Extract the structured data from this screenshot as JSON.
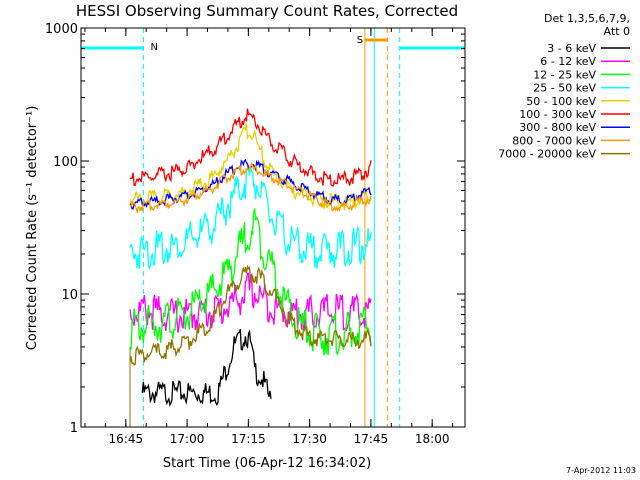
{
  "chart_data": {
    "type": "line",
    "title": "HESSI Observing Summary Count Rates, Corrected",
    "xlabel": "Start Time (06-Apr-12 16:34:02)",
    "ylabel": "Corrected Count Rate (s⁻¹ detector⁻¹)",
    "yscale": "log",
    "ylim": [
      1,
      1000
    ],
    "xlim_minutes": [
      0,
      94
    ],
    "x_tick_labels": [
      "16:45",
      "17:00",
      "17:15",
      "17:30",
      "17:45",
      "18:00"
    ],
    "y_tick_labels": [
      "1",
      "10",
      "100",
      "1000"
    ],
    "legend_header": [
      "Det 1,3,5,6,7,9,",
      "Att 0"
    ],
    "legend_placement": "right",
    "timestamp": "7-Apr-2012 11:03",
    "annotations": [
      {
        "text": "N",
        "color": "#00ffff"
      },
      {
        "text": "S",
        "color": "#ff9900"
      }
    ],
    "series": [
      {
        "name": "3 - 6 keV",
        "color": "#000000",
        "x": [
          15.0,
          22.0,
          27.0,
          33.5,
          35.5,
          37.5,
          40.5,
          41.5,
          42.5,
          44.5,
          46.5
        ],
        "y": [
          2.0,
          2.0,
          2.0,
          2.0,
          3.0,
          4.5,
          5.5,
          4.6,
          3.0,
          2.5,
          1.7
        ]
      },
      {
        "name": "6 - 12 keV",
        "color": "#ff00ff",
        "x": [
          12.0,
          16.0,
          20.0,
          25.0,
          30.0,
          34.0,
          37.0,
          39.0,
          41.0,
          42.5,
          45.0,
          48.0,
          52.0,
          55.0,
          58.0,
          62.0,
          65.0,
          68.0,
          71.0
        ],
        "y": [
          8.5,
          8.8,
          8.3,
          8.0,
          8.5,
          9.0,
          10.0,
          11.0,
          12.5,
          12.0,
          10.5,
          9.0,
          8.5,
          8.3,
          8.5,
          8.8,
          8.5,
          8.3,
          8.5
        ]
      },
      {
        "name": "12 - 25 keV",
        "color": "#00ff00",
        "x": [
          12.0,
          16.0,
          20.0,
          25.0,
          29.0,
          33.0,
          36.0,
          39.0,
          41.0,
          42.5,
          44.5,
          47.0,
          50.0,
          53.0,
          57.0,
          61.0,
          65.0,
          68.0,
          71.0
        ],
        "y": [
          6.5,
          7.0,
          7.5,
          8.0,
          10.0,
          13.0,
          18.0,
          26.0,
          36.0,
          40.0,
          28.0,
          18.0,
          10.0,
          7.0,
          6.0,
          6.0,
          6.0,
          6.5,
          7.0
        ]
      },
      {
        "name": "25 - 50 keV",
        "color": "#00ffff",
        "x": [
          12.0,
          16.0,
          20.0,
          25.0,
          29.0,
          33.0,
          36.0,
          39.0,
          41.0,
          42.5,
          44.5,
          47.0,
          50.0,
          53.0,
          57.0,
          61.0,
          65.0,
          68.0,
          71.0
        ],
        "y": [
          24.0,
          25.0,
          26.0,
          28.0,
          33.0,
          40.0,
          55.0,
          75.0,
          88.0,
          86.0,
          62.0,
          42.0,
          32.0,
          27.0,
          25.0,
          25.0,
          26.0,
          27.0,
          28.0
        ]
      },
      {
        "name": "50 - 100 keV",
        "color": "#e6d200",
        "x": [
          12.0,
          16.0,
          20.0,
          25.0,
          29.0,
          33.0,
          36.0,
          38.5,
          40.5,
          42.0,
          43.5,
          45.5,
          48.0,
          51.0,
          54.0,
          58.0,
          61.0,
          64.0,
          66.0,
          68.0,
          71.0
        ],
        "y": [
          55.0,
          56.0,
          58.0,
          62.0,
          70.0,
          85.0,
          110.0,
          145.0,
          180.0,
          175.0,
          135.0,
          100.0,
          80.0,
          68.0,
          60.0,
          55.0,
          53.0,
          52.0,
          53.0,
          55.0,
          56.0
        ]
      },
      {
        "name": "100 - 300 keV",
        "color": "#ff0000",
        "x": [
          12.0,
          16.0,
          20.0,
          25.0,
          29.0,
          33.0,
          36.0,
          38.5,
          40.5,
          42.0,
          44.0,
          46.0,
          49.0,
          52.0,
          55.0,
          58.0,
          61.0,
          63.0,
          65.0,
          67.0,
          69.0,
          71.0
        ],
        "y": [
          78.0,
          80.0,
          84.0,
          92.0,
          110.0,
          135.0,
          170.0,
          205.0,
          240.0,
          225.0,
          190.0,
          155.0,
          125.0,
          105.0,
          92.0,
          82.0,
          78.0,
          76.0,
          78.0,
          82.0,
          88.0,
          95.0
        ]
      },
      {
        "name": "300 - 800 keV",
        "color": "#0000ff",
        "x": [
          12.0,
          16.0,
          20.0,
          25.0,
          29.0,
          33.0,
          36.0,
          39.0,
          41.0,
          43.0,
          45.0,
          48.0,
          51.0,
          54.0,
          57.0,
          60.0,
          62.0,
          64.0,
          66.0,
          68.0,
          71.0
        ],
        "y": [
          50.0,
          51.0,
          53.0,
          56.0,
          62.0,
          72.0,
          85.0,
          97.0,
          100.0,
          98.0,
          90.0,
          80.0,
          73.0,
          66.0,
          60.0,
          55.0,
          54.0,
          53.0,
          55.0,
          58.0,
          62.0
        ]
      },
      {
        "name": "800 - 7000 keV",
        "color": "#ff9900",
        "x": [
          12.0,
          16.0,
          20.0,
          25.0,
          29.0,
          33.0,
          36.0,
          39.0,
          41.0,
          43.0,
          45.0,
          48.0,
          51.0,
          54.0,
          57.0,
          60.0,
          62.0,
          64.0,
          66.0,
          68.0,
          71.0
        ],
        "y": [
          47.0,
          48.0,
          50.0,
          53.0,
          59.0,
          68.0,
          80.0,
          90.0,
          92.0,
          90.0,
          84.0,
          75.0,
          68.0,
          61.0,
          55.0,
          50.0,
          48.0,
          47.0,
          49.0,
          52.0,
          55.0
        ]
      },
      {
        "name": "7000 - 20000 keV",
        "color": "#8b7400",
        "x": [
          12.0,
          16.0,
          20.0,
          25.0,
          29.0,
          33.0,
          36.0,
          39.0,
          41.0,
          43.0,
          45.0,
          48.0,
          51.0,
          54.0,
          57.0,
          60.0,
          63.0,
          66.0,
          68.0,
          71.0
        ],
        "y": [
          3.7,
          3.8,
          4.0,
          4.5,
          5.5,
          7.5,
          11.0,
          14.0,
          15.5,
          15.0,
          13.0,
          10.0,
          7.0,
          5.5,
          5.0,
          5.0,
          5.0,
          4.8,
          4.9,
          5.0
        ]
      }
    ]
  }
}
